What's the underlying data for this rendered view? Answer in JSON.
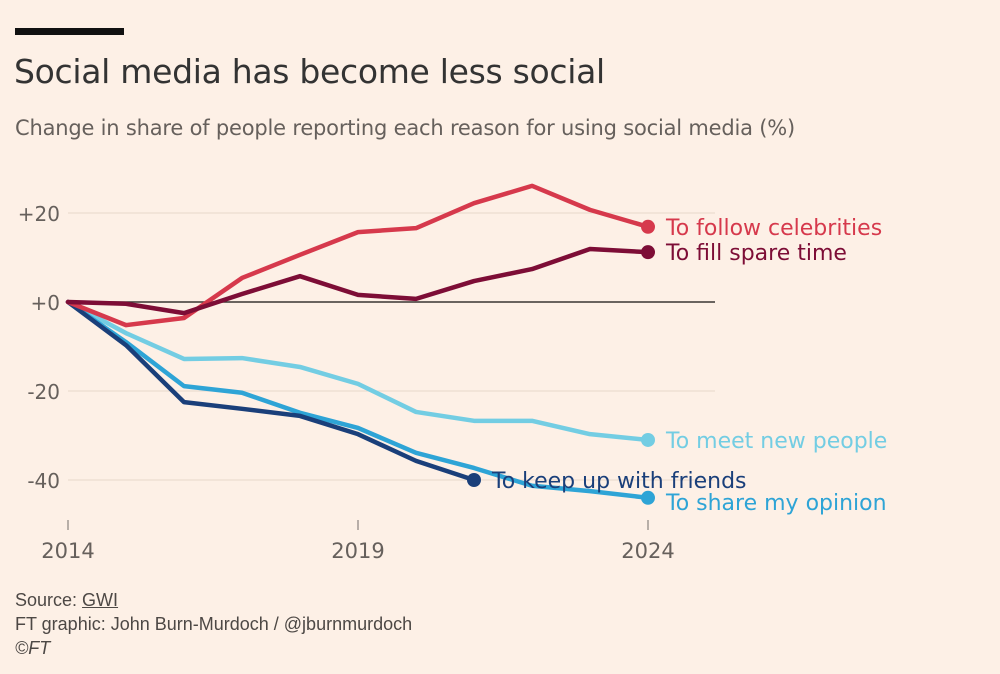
{
  "header": {
    "title": "Social media has become less social",
    "subtitle": "Change in share of people reporting each reason for using social media (%)"
  },
  "footer": {
    "source_label": "Source: ",
    "source_link": "GWI",
    "credit": "FT graphic: John Burn-Murdoch / @jburnmurdoch",
    "copyright": "©FT"
  },
  "colors": {
    "background": "#fdf0e6",
    "zero_line": "#3a3532",
    "grid": "#ecdcd0",
    "tick_text": "#66605c"
  },
  "chart_data": {
    "type": "line",
    "title": "Social media has become less social",
    "subtitle": "Change in share of people reporting each reason for using social media (%)",
    "xlabel": "",
    "ylabel": "",
    "x": [
      2014,
      2015,
      2016,
      2017,
      2018,
      2019,
      2020,
      2021,
      2022,
      2023,
      2024
    ],
    "xlim": [
      2014,
      2024
    ],
    "ylim": [
      -50,
      28
    ],
    "x_ticks": [
      2014,
      2019,
      2024
    ],
    "x_tick_labels": [
      "2014",
      "2019",
      "2024"
    ],
    "y_ticks": [
      20,
      0,
      -20,
      -40
    ],
    "y_tick_labels": [
      "+20",
      "+0",
      "-20",
      "-40"
    ],
    "grid": true,
    "legend": "direct-labels-right",
    "series": [
      {
        "name": "To follow celebrities",
        "color": "#d6394c",
        "values": [
          0,
          -5.2,
          -3.6,
          5.4,
          10.6,
          15.7,
          16.6,
          22.2,
          26.1,
          20.7,
          16.9
        ]
      },
      {
        "name": "To fill spare time",
        "color": "#7d0d36",
        "values": [
          0,
          -0.4,
          -2.5,
          1.8,
          5.8,
          1.6,
          0.7,
          4.7,
          7.4,
          11.9,
          11.2
        ]
      },
      {
        "name": "To meet new people",
        "color": "#73cde3",
        "values": [
          0,
          -7.0,
          -12.8,
          -12.6,
          -14.6,
          -18.4,
          -24.7,
          -26.7,
          -26.7,
          -29.7,
          -31.0
        ]
      },
      {
        "name": "To share my opinion",
        "color": "#2ea4d6",
        "values": [
          0,
          -9.0,
          -18.9,
          -20.4,
          -24.9,
          -28.3,
          -33.9,
          -37.3,
          -41.3,
          -42.5,
          -44.0
        ]
      },
      {
        "name": "To keep up with friends",
        "color": "#1a3f7a",
        "values": [
          0,
          -9.7,
          -22.5,
          -24.0,
          -25.6,
          -29.7,
          -35.7,
          -40.0,
          null,
          null,
          null
        ]
      }
    ]
  }
}
